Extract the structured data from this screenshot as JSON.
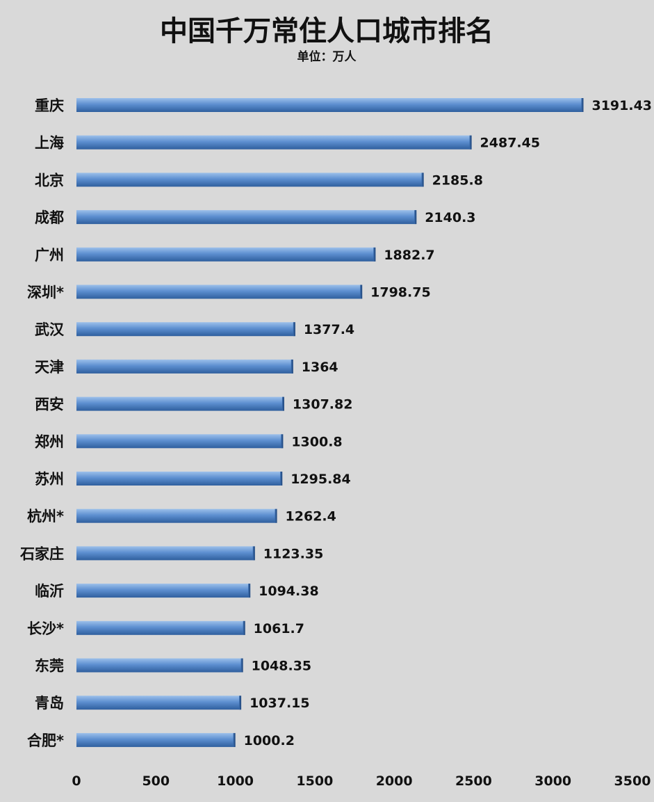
{
  "chart_data": {
    "type": "bar",
    "orientation": "horizontal",
    "title": "中国千万常住人口城市排名",
    "subtitle": "单位：万人",
    "categories": [
      "重庆",
      "上海",
      "北京",
      "成都",
      "广州",
      "深圳*",
      "武汉",
      "天津",
      "西安",
      "郑州",
      "苏州",
      "杭州*",
      "石家庄",
      "临沂",
      "长沙*",
      "东莞",
      "青岛",
      "合肥*"
    ],
    "values": [
      3191.43,
      2487.45,
      2185.8,
      2140.3,
      1882.7,
      1798.75,
      1377.4,
      1364,
      1307.82,
      1300.8,
      1295.84,
      1262.4,
      1123.35,
      1094.38,
      1061.7,
      1048.35,
      1037.15,
      1000.2
    ],
    "value_labels": [
      "3191.43",
      "2487.45",
      "2185.8",
      "2140.3",
      "1882.7",
      "1798.75",
      "1377.4",
      "1364",
      "1307.82",
      "1300.8",
      "1295.84",
      "1262.4",
      "1123.35",
      "1094.38",
      "1061.7",
      "1048.35",
      "1037.15",
      "1000.2"
    ],
    "xlim": [
      0,
      3500
    ],
    "xticks": [
      "0",
      "500",
      "1000",
      "1500",
      "2000",
      "2500",
      "3000",
      "3500"
    ],
    "grid": false,
    "legend": "none",
    "bar_color": "#4f81bd"
  }
}
